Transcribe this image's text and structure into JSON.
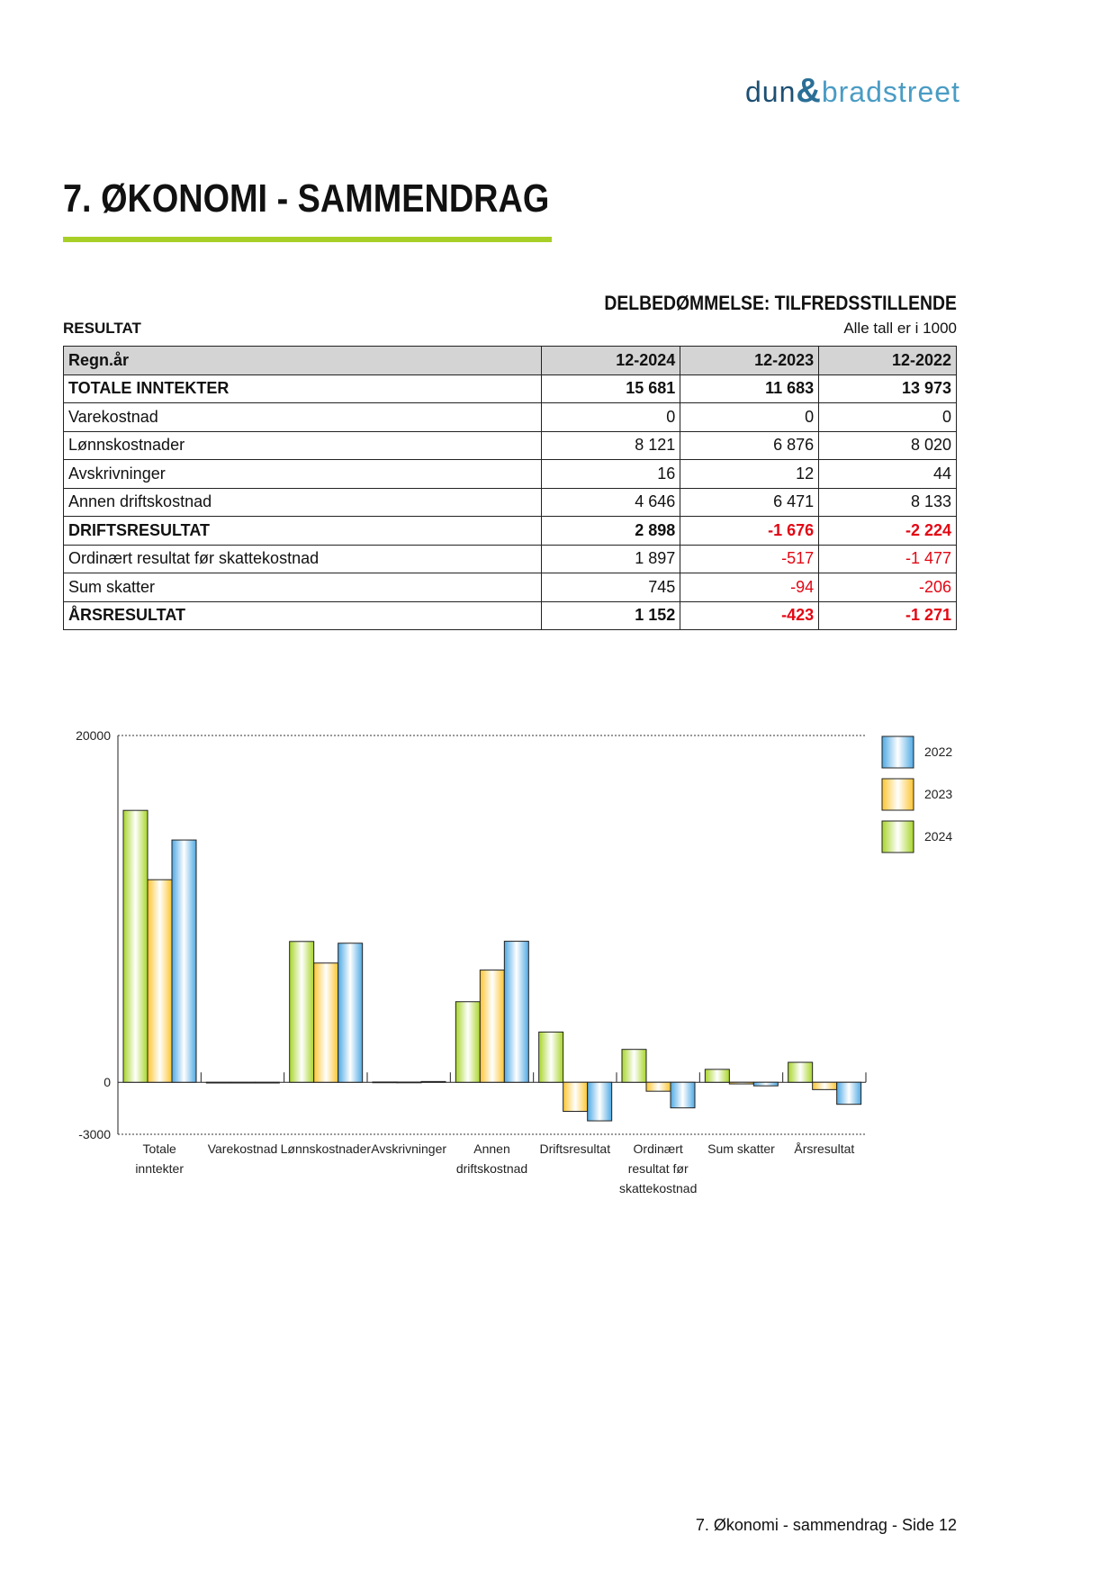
{
  "logo": {
    "text_left": "dun",
    "text_amp": "&",
    "text_right": "bradstreet"
  },
  "title": "7. ØKONOMI - SAMMENDRAG",
  "rating": "DELBEDØMMELSE: TILFREDSSTILLENDE",
  "section": "RESULTAT",
  "units": "Alle tall er i 1000",
  "table": {
    "headers": [
      "Regn.år",
      "12-2024",
      "12-2023",
      "12-2022"
    ],
    "rows": [
      {
        "label": "TOTALE INNTEKTER",
        "bold": true,
        "values": [
          "15 681",
          "11 683",
          "13 973"
        ]
      },
      {
        "label": "Varekostnad",
        "bold": false,
        "values": [
          "0",
          "0",
          "0"
        ]
      },
      {
        "label": "Lønnskostnader",
        "bold": false,
        "values": [
          "8 121",
          "6 876",
          "8 020"
        ]
      },
      {
        "label": "Avskrivninger",
        "bold": false,
        "values": [
          "16",
          "12",
          "44"
        ]
      },
      {
        "label": "Annen driftskostnad",
        "bold": false,
        "values": [
          "4 646",
          "6 471",
          "8 133"
        ]
      },
      {
        "label": "DRIFTSRESULTAT",
        "bold": true,
        "values": [
          "2 898",
          "-1 676",
          "-2 224"
        ]
      },
      {
        "label": "Ordinært resultat før skattekostnad",
        "bold": false,
        "values": [
          "1 897",
          "-517",
          "-1 477"
        ]
      },
      {
        "label": "Sum skatter",
        "bold": false,
        "values": [
          "745",
          "-94",
          "-206"
        ]
      },
      {
        "label": "ÅRSRESULTAT",
        "bold": true,
        "values": [
          "1 152",
          "-423",
          "-1 271"
        ]
      }
    ]
  },
  "chart_data": {
    "type": "bar",
    "categories": [
      [
        "Totale",
        "inntekter"
      ],
      [
        "Varekostnad"
      ],
      [
        "Lønnskostnader"
      ],
      [
        "Avskrivninger"
      ],
      [
        "Annen",
        "driftskostnad"
      ],
      [
        "Driftsresultat"
      ],
      [
        "Ordinært",
        "resultat før",
        "skattekostnad"
      ],
      [
        "Sum skatter"
      ],
      [
        "Årsresultat"
      ]
    ],
    "series": [
      {
        "name": "2024",
        "color": "#a8d52a",
        "values": [
          15681,
          0,
          8121,
          16,
          4646,
          2898,
          1897,
          745,
          1152
        ]
      },
      {
        "name": "2023",
        "color": "#fcc531",
        "values": [
          11683,
          0,
          6876,
          12,
          6471,
          -1676,
          -517,
          -94,
          -423
        ]
      },
      {
        "name": "2022",
        "color": "#4ea9e4",
        "values": [
          13973,
          0,
          8020,
          44,
          8133,
          -2224,
          -1477,
          -206,
          -1271
        ]
      }
    ],
    "yticks": [
      20000,
      0,
      -3000
    ],
    "ylim": [
      -3000,
      20000
    ],
    "legend_order": [
      "2022",
      "2023",
      "2024"
    ],
    "legend": "right",
    "grid": "dotted lines at top and bottom"
  },
  "negative_color": "#e30613",
  "accent_color": "#a8cf27",
  "footer": "7. Økonomi - sammendrag - Side 12"
}
